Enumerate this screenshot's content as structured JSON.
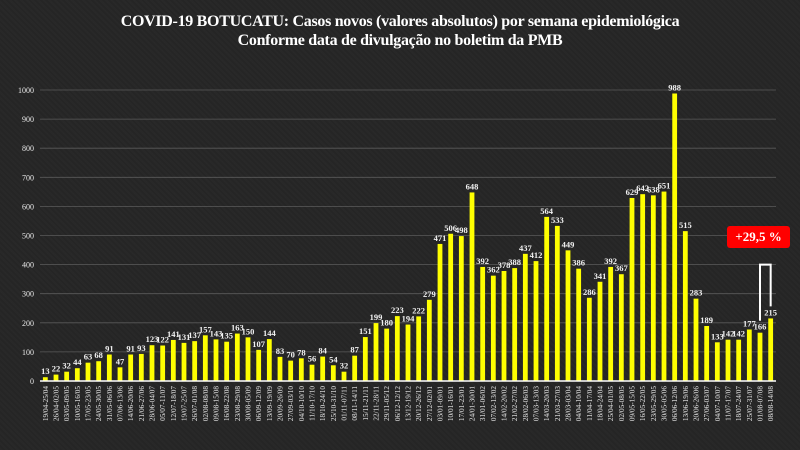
{
  "chart_data": {
    "type": "bar",
    "title": "COVID-19 BOTUCATU: Casos novos (valores absolutos) por semana epidemiológica",
    "subtitle": "Conforme data de divulgação no boletim da PMB",
    "xlabel": "",
    "ylabel": "",
    "ylim": [
      0,
      1000
    ],
    "yticks": [
      0,
      100,
      200,
      300,
      400,
      500,
      600,
      700,
      800,
      900,
      1000
    ],
    "grid": true,
    "bar_color": "#ffff00",
    "categories": [
      "19/04-25/04",
      "26/04-02/05",
      "03/05-09/05",
      "10/05-16/05",
      "17/05-23/05",
      "24/05-30/05",
      "31/05-06/06",
      "07/06-13/06",
      "14/06-20/06",
      "21/06-27/06",
      "28/06-04/07",
      "05/07-11/07",
      "12/07-18/07",
      "19/07-25/07",
      "26/07-01/08",
      "02/08-08/08",
      "09/08-15/08",
      "16/08-22/08",
      "23/08-29/08",
      "30/08-05/09",
      "06/09-12/09",
      "13/09-19/09",
      "20/09-26/09",
      "27/09-03/10",
      "04/10-10/10",
      "11/10-17/10",
      "18/10-24/10",
      "25/10-31/10",
      "01/11-07/11",
      "08/11-14/11",
      "15/11-21/11",
      "22/11-28/11",
      "29/11-05/12",
      "06/12-12/12",
      "13/12-19/12",
      "20/12-26/12",
      "27/12-02/01",
      "03/01-09/01",
      "10/01-16/01",
      "17/01-23/01",
      "24/01-30/01",
      "31/01-06/02",
      "07/02-13/02",
      "14/02-20/02",
      "21/02-27/02",
      "28/02-06/03",
      "07/03-13/03",
      "14/03-20/03",
      "21/03-27/03",
      "28/03-03/04",
      "04/04-10/04",
      "11/04-17/04",
      "18/04-24/04",
      "25/04-01/05",
      "02/05-08/05",
      "09/05-15/05",
      "16/05-22/05",
      "23/05-29/05",
      "30/05-05/06",
      "06/06-12/06",
      "13/06-19/06",
      "20/06-26/06",
      "27/06-03/07",
      "04/07-10/07",
      "11/07-17/07",
      "18/07-24/07",
      "25/07-31/07",
      "01/08-07/08",
      "08/08-14/08"
    ],
    "values": [
      13,
      22,
      32,
      44,
      63,
      68,
      91,
      47,
      91,
      93,
      123,
      122,
      141,
      131,
      137,
      157,
      143,
      135,
      163,
      150,
      107,
      144,
      83,
      70,
      78,
      56,
      84,
      54,
      32,
      87,
      151,
      199,
      180,
      223,
      194,
      222,
      279,
      471,
      506,
      498,
      648,
      392,
      362,
      378,
      388,
      437,
      412,
      564,
      533,
      449,
      386,
      286,
      341,
      392,
      367,
      629,
      642,
      638,
      651,
      988,
      515,
      283,
      189,
      133,
      142,
      142,
      177,
      166,
      215
    ],
    "annotations": [
      {
        "text": "+29,5 %",
        "type": "badge",
        "color": "#ff0000",
        "relates_to": [
          "01/08-07/08",
          "08/08-14/08"
        ]
      }
    ]
  }
}
